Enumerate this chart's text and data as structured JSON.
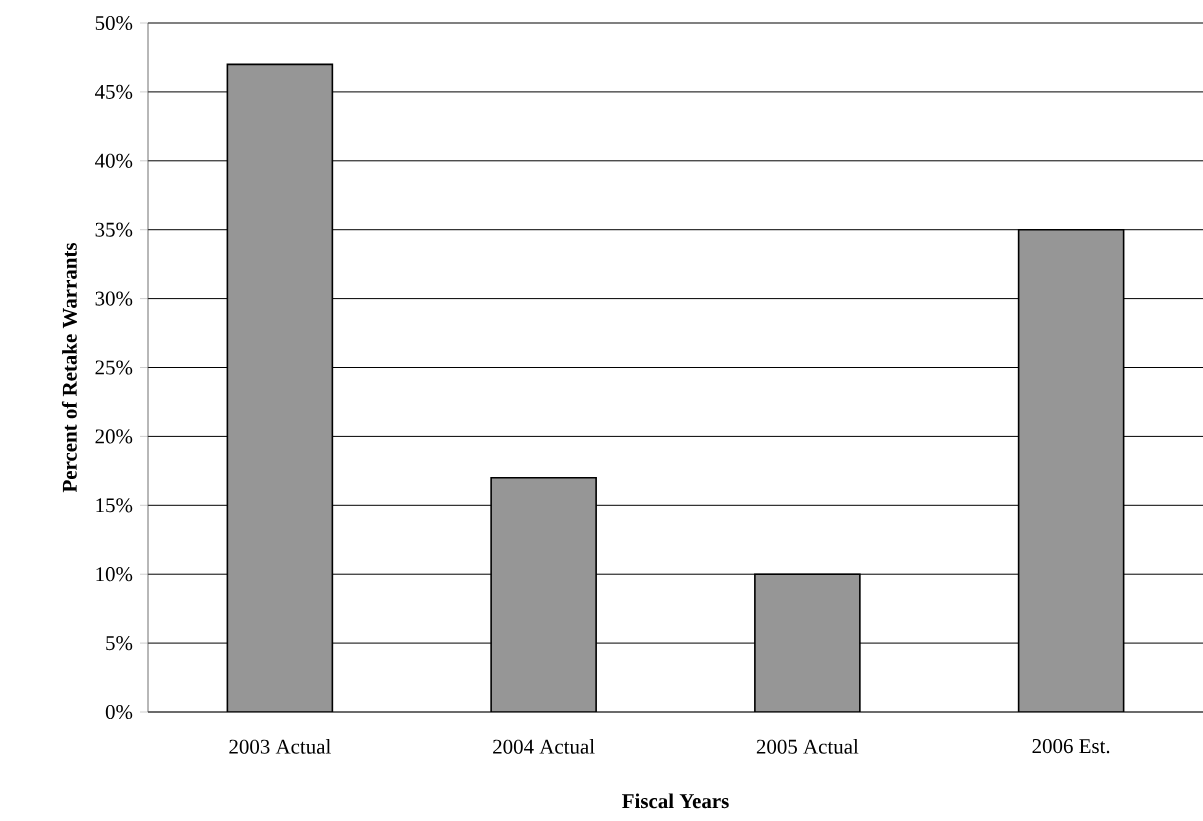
{
  "chart_data": {
    "type": "bar",
    "xlabel": "Fiscal Years",
    "ylabel": "Percent  of Retake Warrants",
    "categories": [
      "2003 Actual",
      "2004 Actual",
      "2005 Actual",
      "2006 Est."
    ],
    "values": [
      47,
      17,
      10,
      35
    ],
    "color": "#969696",
    "ylim": [
      0,
      50
    ],
    "yticks": [
      {
        "value": 0,
        "label": "0%"
      },
      {
        "value": 5,
        "label": "5%"
      },
      {
        "value": 10,
        "label": "10%"
      },
      {
        "value": 15,
        "label": "15%"
      },
      {
        "value": 20,
        "label": "20%"
      },
      {
        "value": 25,
        "label": "25%"
      },
      {
        "value": 30,
        "label": "30%"
      },
      {
        "value": 35,
        "label": "35%"
      },
      {
        "value": 40,
        "label": "40%"
      },
      {
        "value": 45,
        "label": "45%"
      },
      {
        "value": 50,
        "label": "50%"
      }
    ],
    "grid": "y"
  }
}
